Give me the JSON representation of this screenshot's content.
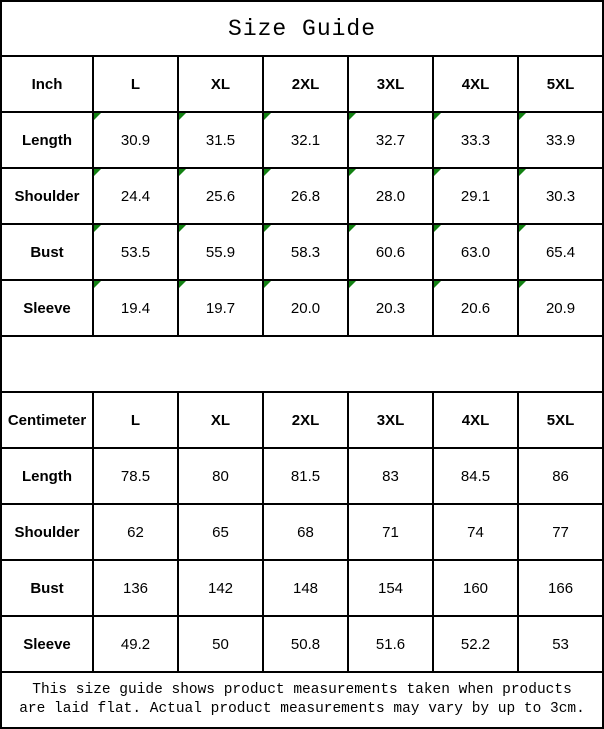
{
  "title": "Size Guide",
  "colors": {
    "marker_green": "#128112",
    "border": "#000000",
    "background": "#ffffff",
    "text": "#000000"
  },
  "tables": [
    {
      "unit": "Inch",
      "sizes": [
        "L",
        "XL",
        "2XL",
        "3XL",
        "4XL",
        "5XL"
      ],
      "has_corner_markers": true,
      "rows": [
        {
          "label": "Length",
          "values": [
            "30.9",
            "31.5",
            "32.1",
            "32.7",
            "33.3",
            "33.9"
          ]
        },
        {
          "label": "Shoulder",
          "values": [
            "24.4",
            "25.6",
            "26.8",
            "28.0",
            "29.1",
            "30.3"
          ]
        },
        {
          "label": "Bust",
          "values": [
            "53.5",
            "55.9",
            "58.3",
            "60.6",
            "63.0",
            "65.4"
          ]
        },
        {
          "label": "Sleeve",
          "values": [
            "19.4",
            "19.7",
            "20.0",
            "20.3",
            "20.6",
            "20.9"
          ]
        }
      ]
    },
    {
      "unit": "Centimeter",
      "sizes": [
        "L",
        "XL",
        "2XL",
        "3XL",
        "4XL",
        "5XL"
      ],
      "has_corner_markers": false,
      "rows": [
        {
          "label": "Length",
          "values": [
            "78.5",
            "80",
            "81.5",
            "83",
            "84.5",
            "86"
          ]
        },
        {
          "label": "Shoulder",
          "values": [
            "62",
            "65",
            "68",
            "71",
            "74",
            "77"
          ]
        },
        {
          "label": "Bust",
          "values": [
            "136",
            "142",
            "148",
            "154",
            "160",
            "166"
          ]
        },
        {
          "label": "Sleeve",
          "values": [
            "49.2",
            "50",
            "50.8",
            "51.6",
            "52.2",
            "53"
          ]
        }
      ]
    }
  ],
  "footer": {
    "line1": "This size guide shows product measurements taken when products",
    "line2": "are laid flat. Actual product measurements may vary by up to 3cm."
  }
}
